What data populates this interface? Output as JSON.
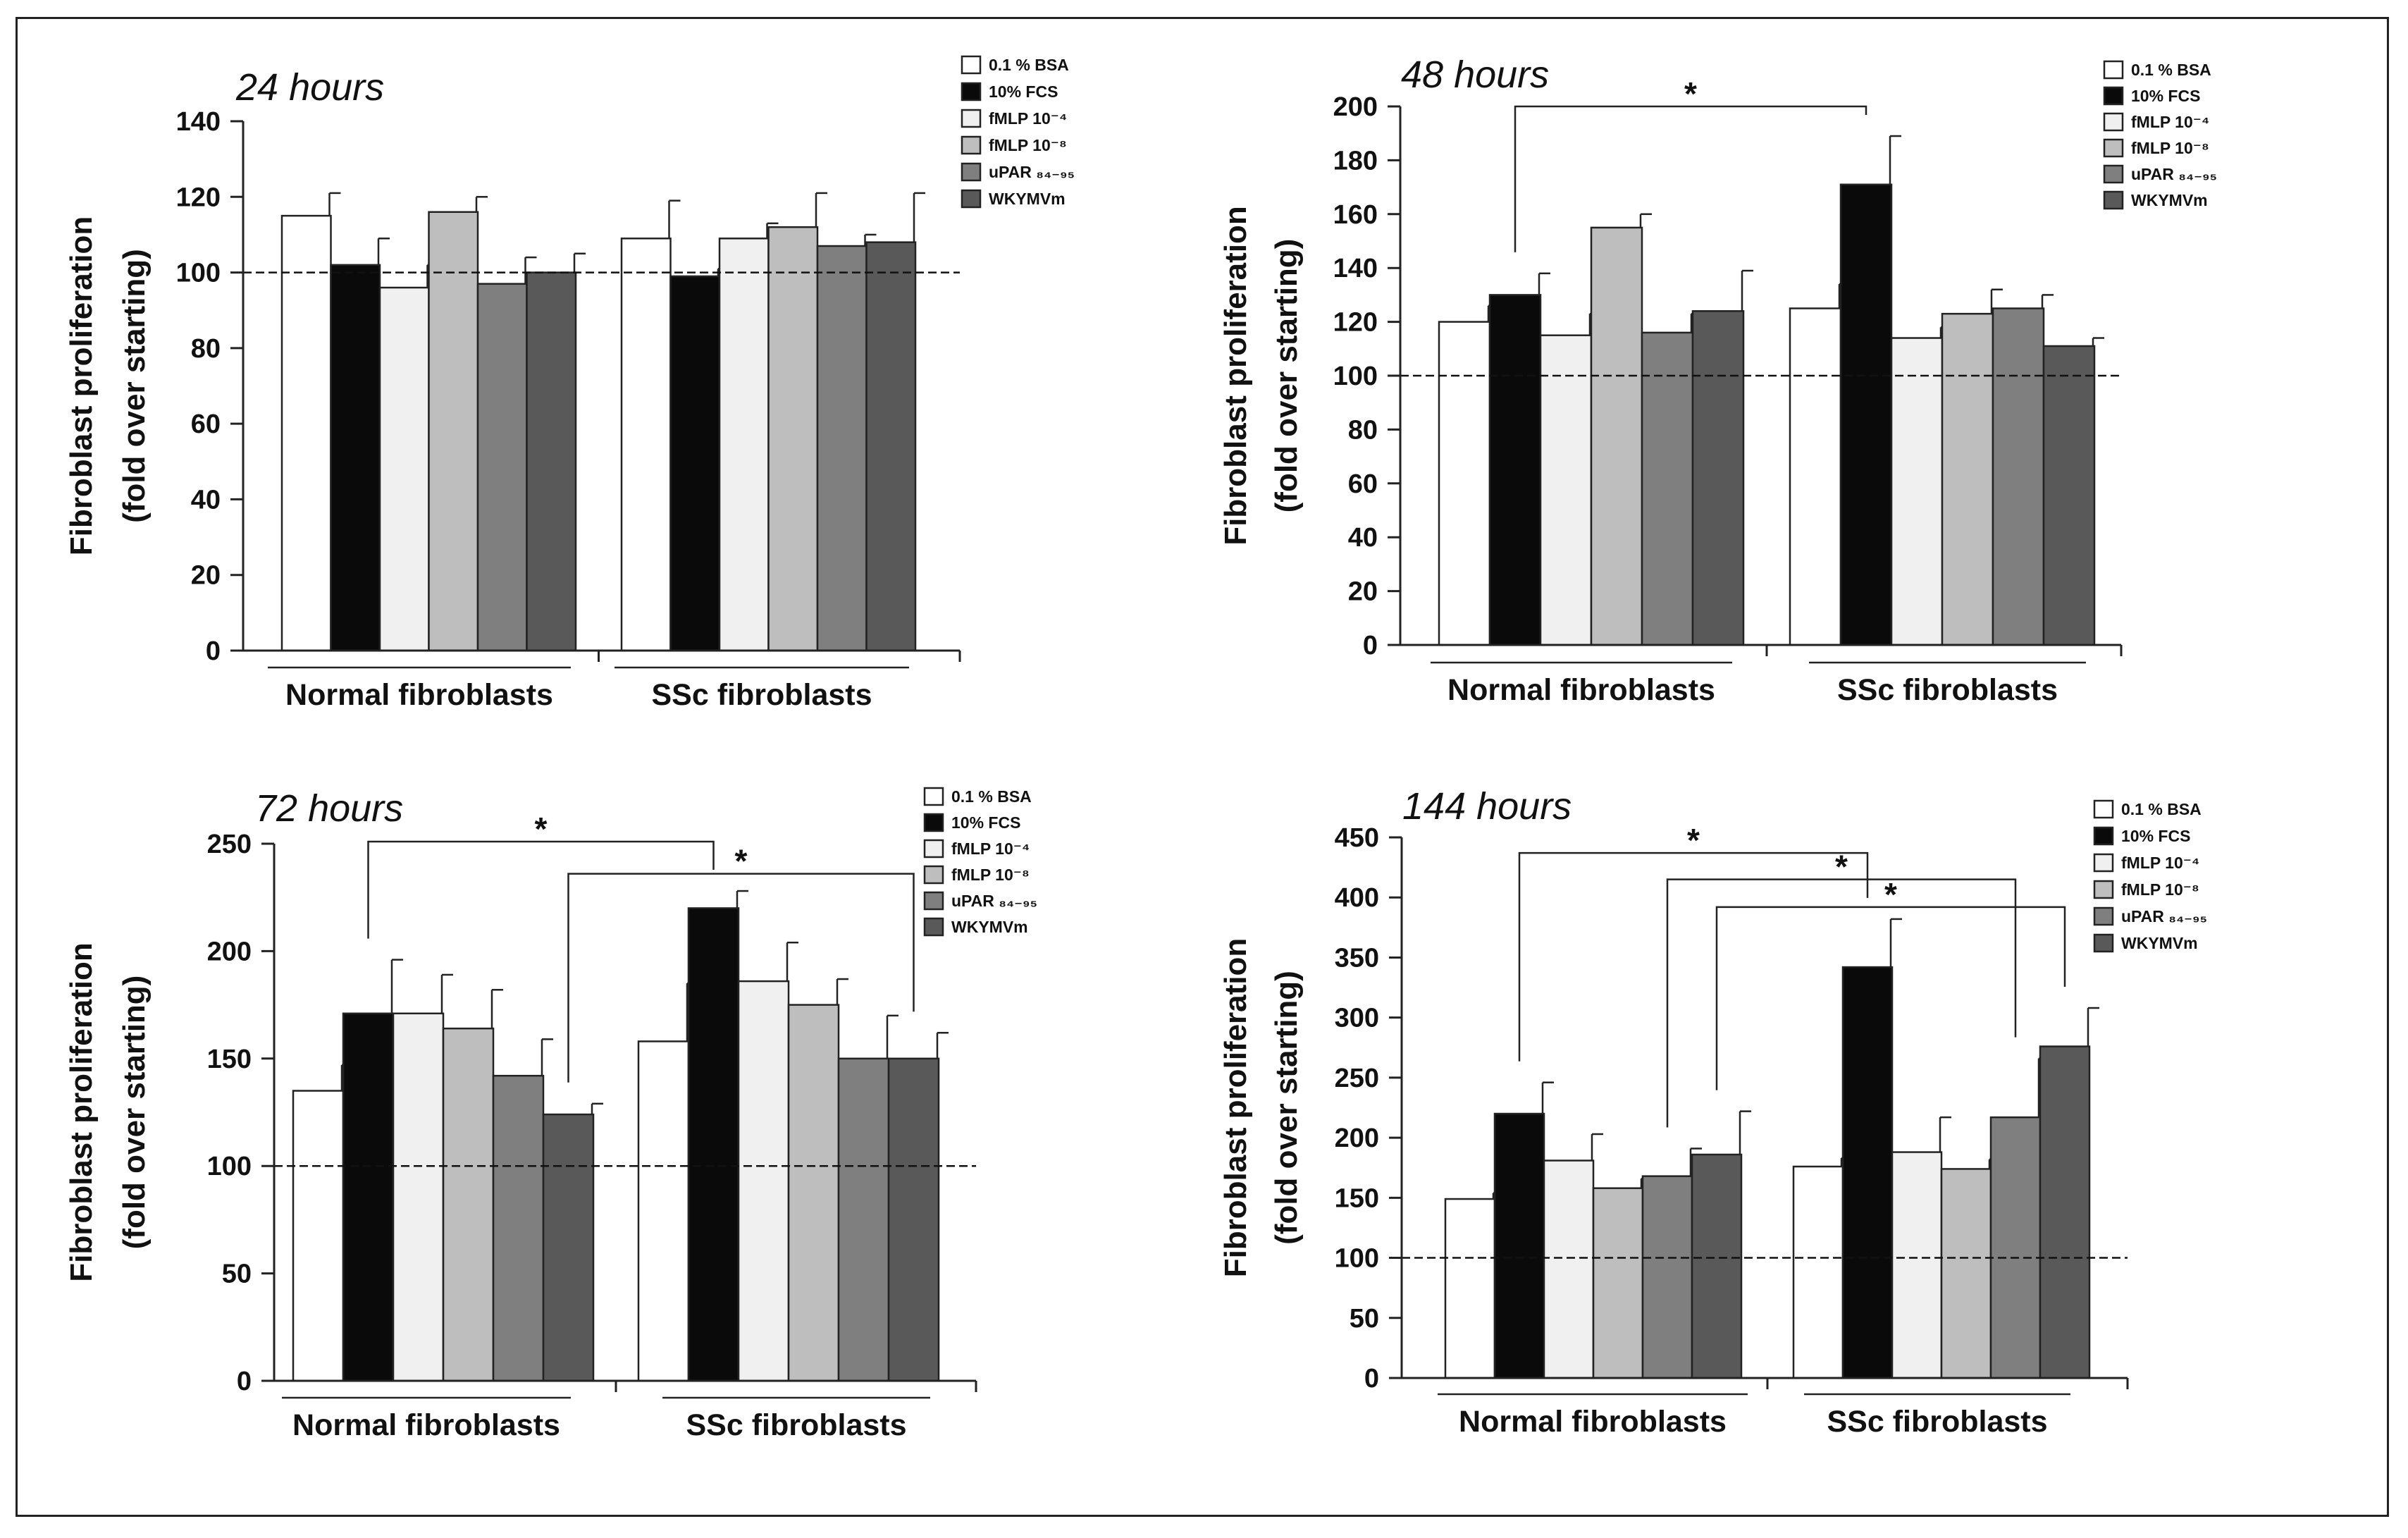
{
  "chart_data": [
    {
      "type": "bar",
      "title": "24 hours",
      "ylabel_line1": "Fibroblast proliferation",
      "ylabel_line2": "(fold over starting)",
      "ylim": [
        0,
        140
      ],
      "yticks": [
        0,
        20,
        40,
        60,
        80,
        100,
        120,
        140
      ],
      "reference_line": 100,
      "groups": [
        "Normal fibroblasts",
        "SSc fibroblasts"
      ],
      "series": [
        {
          "name": "0.1 % BSA",
          "values": [
            115,
            109
          ],
          "errors": [
            6,
            10
          ]
        },
        {
          "name": "10% FCS",
          "values": [
            102,
            99
          ],
          "errors": [
            7,
            2
          ]
        },
        {
          "name": "fMLP 10⁻⁴",
          "values": [
            96,
            109
          ],
          "errors": [
            6,
            4
          ]
        },
        {
          "name": "fMLP 10⁻⁸",
          "values": [
            116,
            112
          ],
          "errors": [
            4,
            9
          ]
        },
        {
          "name": "uPAR ₈₄₋₉₅",
          "values": [
            97,
            107
          ],
          "errors": [
            7,
            3
          ]
        },
        {
          "name": "WKYMVm",
          "values": [
            100,
            108
          ],
          "errors": [
            5,
            13
          ]
        }
      ],
      "significance": []
    },
    {
      "type": "bar",
      "title": "48 hours",
      "ylabel_line1": "Fibroblast proliferation",
      "ylabel_line2": "(fold over starting)",
      "ylim": [
        0,
        200
      ],
      "yticks": [
        0,
        20,
        40,
        60,
        80,
        100,
        120,
        140,
        160,
        180,
        200
      ],
      "reference_line": 100,
      "groups": [
        "Normal fibroblasts",
        "SSc fibroblasts"
      ],
      "series": [
        {
          "name": "0.1 % BSA",
          "values": [
            120,
            125
          ],
          "errors": [
            6,
            9
          ]
        },
        {
          "name": "10% FCS",
          "values": [
            130,
            171
          ],
          "errors": [
            8,
            18
          ]
        },
        {
          "name": "fMLP 10⁻⁴",
          "values": [
            115,
            114
          ],
          "errors": [
            8,
            4
          ]
        },
        {
          "name": "fMLP 10⁻⁸",
          "values": [
            155,
            123
          ],
          "errors": [
            5,
            9
          ]
        },
        {
          "name": "uPAR ₈₄₋₉₅",
          "values": [
            116,
            125
          ],
          "errors": [
            7,
            5
          ]
        },
        {
          "name": "WKYMVm",
          "values": [
            124,
            111
          ],
          "errors": [
            15,
            3
          ]
        }
      ],
      "significance": [
        {
          "from": [
            0,
            1
          ],
          "to": [
            1,
            1
          ],
          "y": 200,
          "label": "*"
        }
      ]
    },
    {
      "type": "bar",
      "title": "72 hours",
      "ylabel_line1": "Fibroblast proliferation",
      "ylabel_line2": "(fold over starting)",
      "ylim": [
        0,
        250
      ],
      "yticks": [
        0,
        50,
        100,
        150,
        200,
        250
      ],
      "reference_line": 100,
      "groups": [
        "Normal fibroblasts",
        "SSc fibroblasts"
      ],
      "series": [
        {
          "name": "0.1 % BSA",
          "values": [
            135,
            158
          ],
          "errors": [
            12,
            27
          ]
        },
        {
          "name": "10% FCS",
          "values": [
            171,
            220
          ],
          "errors": [
            25,
            8
          ]
        },
        {
          "name": "fMLP 10⁻⁴",
          "values": [
            171,
            186
          ],
          "errors": [
            18,
            18
          ]
        },
        {
          "name": "fMLP 10⁻⁸",
          "values": [
            164,
            175
          ],
          "errors": [
            18,
            12
          ]
        },
        {
          "name": "uPAR ₈₄₋₉₅",
          "values": [
            142,
            150
          ],
          "errors": [
            17,
            20
          ]
        },
        {
          "name": "WKYMVm",
          "values": [
            124,
            150
          ],
          "errors": [
            5,
            12
          ]
        }
      ],
      "significance": [
        {
          "from": [
            0,
            1
          ],
          "to": [
            1,
            1
          ],
          "y": 251,
          "label": "*"
        },
        {
          "from": [
            0,
            5
          ],
          "to": [
            1,
            5
          ],
          "y": 236,
          "label": "*"
        }
      ]
    },
    {
      "type": "bar",
      "title": "144 hours",
      "ylabel_line1": "Fibroblast proliferation",
      "ylabel_line2": "(fold over starting)",
      "ylim": [
        0,
        450
      ],
      "yticks": [
        0,
        50,
        100,
        150,
        200,
        250,
        300,
        350,
        400,
        450
      ],
      "reference_line": 100,
      "groups": [
        "Normal fibroblasts",
        "SSc fibroblasts"
      ],
      "series": [
        {
          "name": "0.1 % BSA",
          "values": [
            149,
            176
          ],
          "errors": [
            5,
            7
          ]
        },
        {
          "name": "10% FCS",
          "values": [
            220,
            342
          ],
          "errors": [
            26,
            40
          ]
        },
        {
          "name": "fMLP 10⁻⁴",
          "values": [
            181,
            188
          ],
          "errors": [
            22,
            29
          ]
        },
        {
          "name": "fMLP 10⁻⁸",
          "values": [
            158,
            174
          ],
          "errors": [
            8,
            8
          ]
        },
        {
          "name": "uPAR ₈₄₋₉₅",
          "values": [
            168,
            217
          ],
          "errors": [
            23,
            49
          ]
        },
        {
          "name": "WKYMVm",
          "values": [
            186,
            276
          ],
          "errors": [
            36,
            32
          ]
        }
      ],
      "significance": [
        {
          "from": [
            0,
            1
          ],
          "to": [
            1,
            1
          ],
          "y": 437,
          "label": "*"
        },
        {
          "from": [
            0,
            4
          ],
          "to": [
            1,
            4
          ],
          "y": 415,
          "label": "*"
        },
        {
          "from": [
            0,
            5
          ],
          "to": [
            1,
            5
          ],
          "y": 392,
          "label": "*"
        }
      ]
    }
  ],
  "legend": [
    "0.1 % BSA",
    "10% FCS",
    "fMLP 10⁻⁴",
    "fMLP 10⁻⁸",
    "uPAR ₈₄₋₉₅",
    "WKYMVm"
  ],
  "colors": {
    "series": [
      "#ffffff",
      "#0a0a0a",
      "#f0f0f0",
      "#bebebe",
      "#7f7f7f",
      "#595959"
    ],
    "axis": "#222222",
    "bar_stroke": "#222222"
  }
}
